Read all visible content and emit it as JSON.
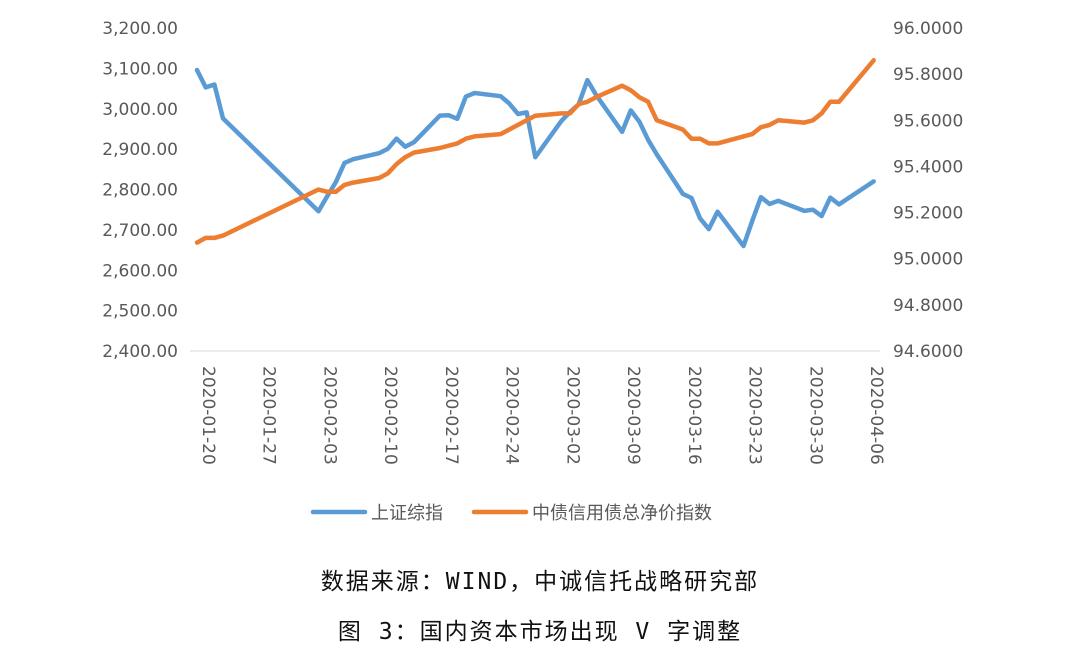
{
  "chart_data": {
    "type": "line",
    "x": [
      "2020-01-20",
      "2020-01-21",
      "2020-01-22",
      "2020-01-23",
      "2020-02-03",
      "2020-02-04",
      "2020-02-05",
      "2020-02-06",
      "2020-02-07",
      "2020-02-10",
      "2020-02-11",
      "2020-02-12",
      "2020-02-13",
      "2020-02-14",
      "2020-02-17",
      "2020-02-18",
      "2020-02-19",
      "2020-02-20",
      "2020-02-21",
      "2020-02-24",
      "2020-02-25",
      "2020-02-26",
      "2020-02-27",
      "2020-02-28",
      "2020-03-02",
      "2020-03-03",
      "2020-03-04",
      "2020-03-05",
      "2020-03-06",
      "2020-03-09",
      "2020-03-10",
      "2020-03-11",
      "2020-03-12",
      "2020-03-13",
      "2020-03-16",
      "2020-03-17",
      "2020-03-18",
      "2020-03-19",
      "2020-03-20",
      "2020-03-23",
      "2020-03-24",
      "2020-03-25",
      "2020-03-26",
      "2020-03-27",
      "2020-03-30",
      "2020-03-31",
      "2020-04-01",
      "2020-04-02",
      "2020-04-03",
      "2020-04-07"
    ],
    "x_ticks": [
      "2020-01-20",
      "2020-01-27",
      "2020-02-03",
      "2020-02-10",
      "2020-02-17",
      "2020-02-24",
      "2020-03-02",
      "2020-03-09",
      "2020-03-16",
      "2020-03-23",
      "2020-03-30",
      "2020-04-06"
    ],
    "left_axis": {
      "ylim": [
        2400,
        3200
      ],
      "ticks": [
        "2,400.00",
        "2,500.00",
        "2,600.00",
        "2,700.00",
        "2,800.00",
        "2,900.00",
        "3,000.00",
        "3,100.00",
        "3,200.00"
      ]
    },
    "right_axis": {
      "ylim": [
        94.6,
        96.0
      ],
      "ticks": [
        "94.6000",
        "94.8000",
        "95.0000",
        "95.2000",
        "95.4000",
        "95.6000",
        "95.8000",
        "96.0000"
      ]
    },
    "series": [
      {
        "name": "上证综指",
        "axis": "left",
        "color": "#5B9BD5",
        "values": [
          3096,
          3053,
          3060,
          2976,
          2746,
          2783,
          2818,
          2866,
          2875,
          2890,
          2901,
          2926,
          2906,
          2917,
          2983,
          2984,
          2975,
          3030,
          3039,
          3031,
          3013,
          2987,
          2991,
          2880,
          2970,
          2992,
          3011,
          3071,
          3034,
          2943,
          2996,
          2968,
          2923,
          2887,
          2789,
          2779,
          2728,
          2702,
          2745,
          2660,
          2722,
          2781,
          2764,
          2772,
          2747,
          2750,
          2734,
          2780,
          2763,
          2820
        ]
      },
      {
        "name": "中债信用债总净价指数",
        "axis": "right",
        "color": "#ED7D31",
        "values": [
          95.07,
          95.09,
          95.09,
          95.1,
          95.3,
          95.29,
          95.29,
          95.32,
          95.33,
          95.35,
          95.37,
          95.41,
          95.44,
          95.46,
          95.48,
          95.49,
          95.5,
          95.52,
          95.53,
          95.54,
          95.56,
          95.58,
          95.6,
          95.62,
          95.63,
          95.63,
          95.67,
          95.68,
          95.7,
          95.75,
          95.73,
          95.7,
          95.68,
          95.6,
          95.56,
          95.52,
          95.52,
          95.5,
          95.5,
          95.53,
          95.54,
          95.57,
          95.58,
          95.6,
          95.59,
          95.6,
          95.63,
          95.68,
          95.68,
          95.86
        ]
      }
    ]
  },
  "source_note": "数据来源：WIND，中诚信托战略研究部",
  "figure_title": "图 3：国内资本市场出现 V 字调整"
}
